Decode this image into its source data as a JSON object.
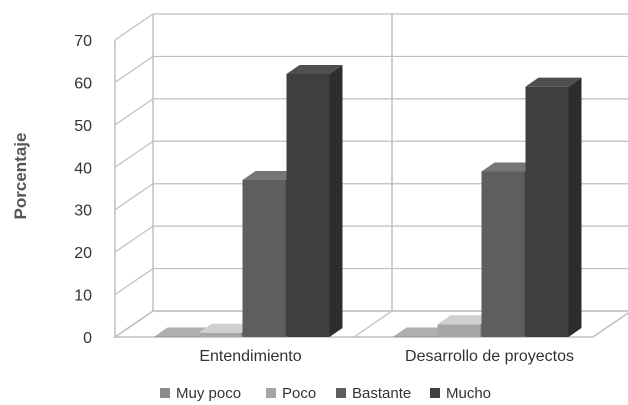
{
  "chart_data": {
    "type": "bar",
    "style": "3d-clustered-column",
    "ylabel": "Porcentaje",
    "ylim": [
      0,
      70
    ],
    "yticks": [
      "0",
      "10",
      "20",
      "30",
      "40",
      "50",
      "60",
      "70"
    ],
    "grid": true,
    "legend_position": "bottom",
    "categories": [
      "Entendimiento",
      "Desarrollo de proyectos"
    ],
    "series": [
      {
        "name": "Muy poco",
        "values": [
          0,
          0
        ],
        "color": "#8c8c8c"
      },
      {
        "name": "Poco",
        "values": [
          1,
          3
        ],
        "color": "#a6a6a6"
      },
      {
        "name": "Bastante",
        "values": [
          37,
          39
        ],
        "color": "#5e5e5e"
      },
      {
        "name": "Mucho",
        "values": [
          62,
          59
        ],
        "color": "#3f3f3f"
      }
    ]
  }
}
